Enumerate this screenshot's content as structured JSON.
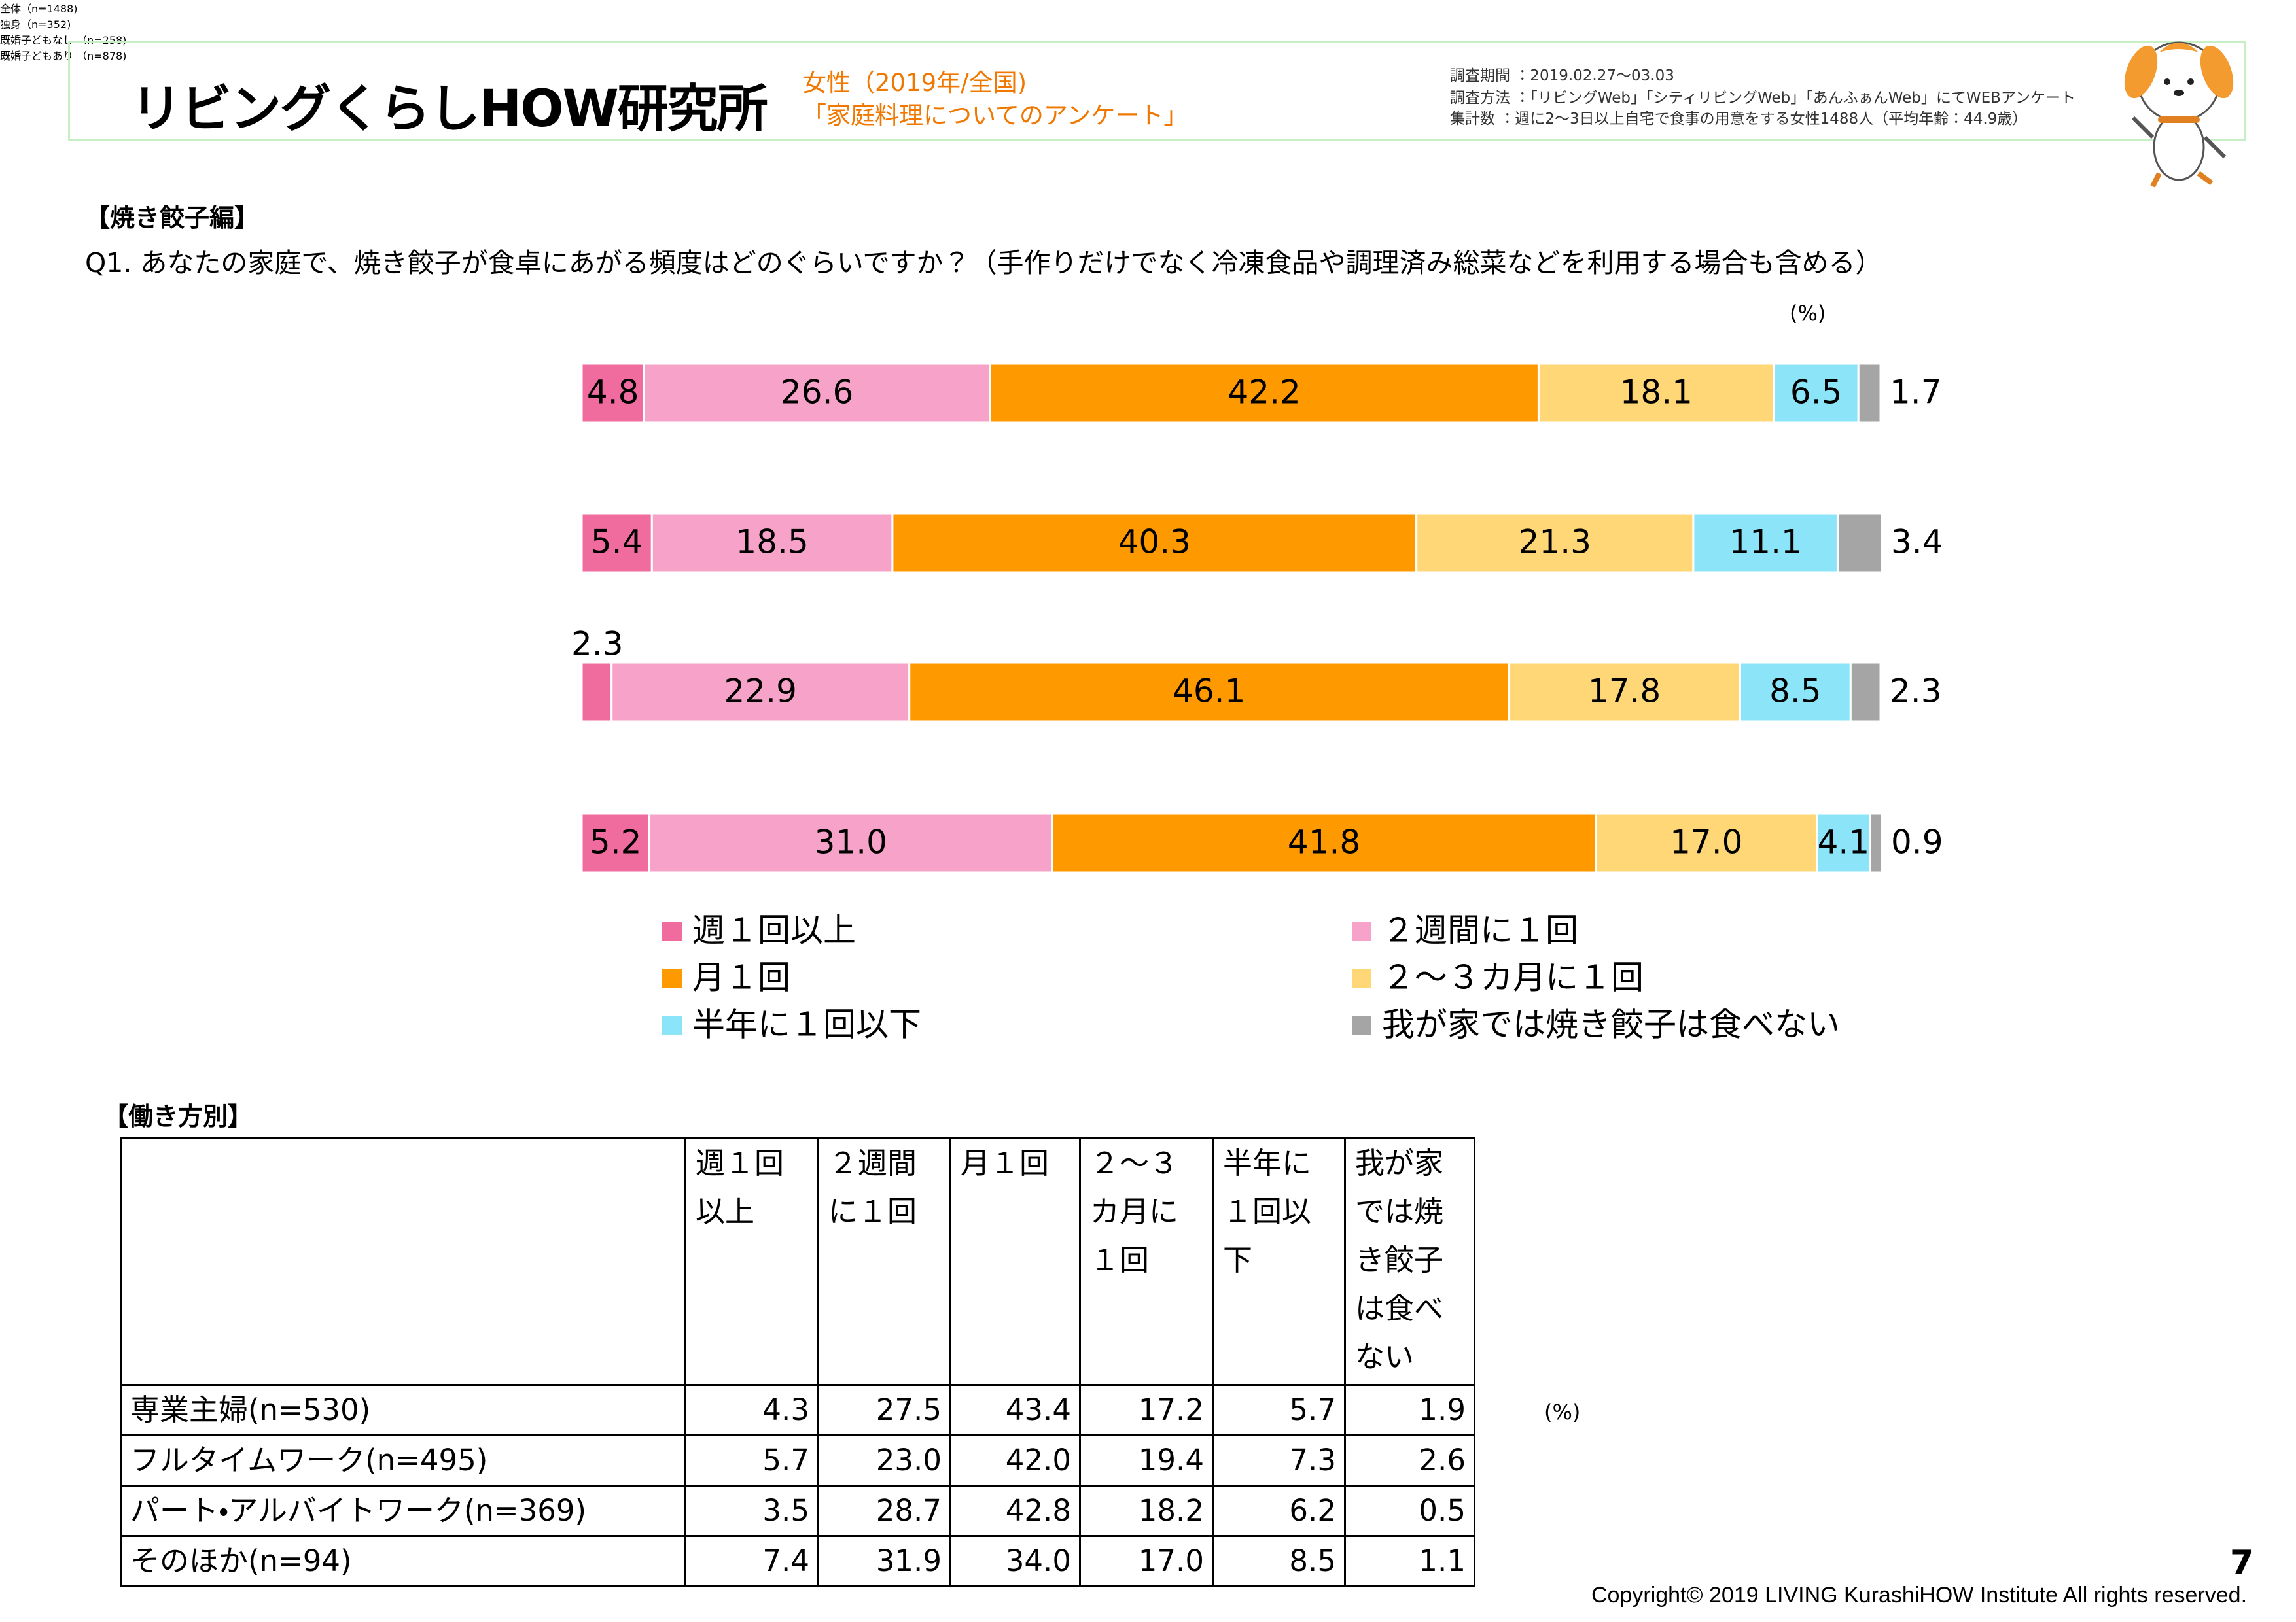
{
  "header": {
    "logo": "リビングくらしHOW研究所",
    "subject": "女性（2019年/全国)",
    "survey": "「家庭料理についてのアンケート」",
    "details": [
      "調査期間 ：2019.02.27～03.03",
      "調査方法 ：「リビングWeb」「シティリビングWeb」「あんふぁんWeb」にてWEBアンケート",
      "集計数 ：週に2～3日以上自宅で食事の用意をする女性1488人（平均年齢：44.9歳）"
    ]
  },
  "section": "【焼き餃子編】",
  "question": "Q1. あなたの家庭で、焼き餃子が食卓にあがる頻度はどのぐらいですか？（手作りだけでなく冷凍食品や調理済み総菜などを利用する場合も含める）",
  "chart_data": {
    "type": "bar",
    "stacked": true,
    "unit_label": "(%)",
    "xlim": [
      0,
      100
    ],
    "categories": [
      "全体（n=1488)",
      "独身（n=352)",
      "既婚子どもなし\n（n=258)",
      "既婚子どもあり\n（n=878)"
    ],
    "series": [
      {
        "name": "週１回以上",
        "color": "#f06c9f",
        "values": [
          4.8,
          5.4,
          2.3,
          5.2
        ]
      },
      {
        "name": "２週間に１回",
        "color": "#f7a3c9",
        "values": [
          26.6,
          18.5,
          22.9,
          31.0
        ],
        "value_labels": [
          "26.6",
          "18.5",
          "22.9",
          "31.0"
        ]
      },
      {
        "name": "月１回",
        "color": "#ff9900",
        "values": [
          42.2,
          40.3,
          46.1,
          41.8
        ]
      },
      {
        "name": "２～３カ月に１回",
        "color": "#ffd777",
        "values": [
          18.1,
          21.3,
          17.8,
          17.0
        ],
        "value_labels": [
          "18.1",
          "21.3",
          "17.8",
          "17.0"
        ]
      },
      {
        "name": "半年に１回以下",
        "color": "#8ce4f8",
        "values": [
          6.5,
          11.1,
          8.5,
          4.1
        ]
      },
      {
        "name": "我が家では焼き餃子は食べない",
        "color": "#a5a5a5",
        "values": [
          1.7,
          3.4,
          2.3,
          0.9
        ]
      }
    ]
  },
  "table": {
    "title": "【働き方別】",
    "unit_label": "(%)",
    "header": [
      "週１回以上",
      "２週間に１回",
      "月１回",
      "２～３カ月に１回",
      "半年に１回以下",
      "我が家では焼き餃子は食べない"
    ],
    "rows": [
      [
        "専業主婦(n=530)",
        "4.3",
        "27.5",
        "43.4",
        "17.2",
        "5.7",
        "1.9"
      ],
      [
        "フルタイムワーク(n=495)",
        "5.7",
        "23.0",
        "42.0",
        "19.4",
        "7.3",
        "2.6"
      ],
      [
        "パート・アルバイトワーク(n=369)",
        "3.5",
        "28.7",
        "42.8",
        "18.2",
        "6.2",
        "0.5"
      ],
      [
        "そのほか(n=94)",
        "7.4",
        "31.9",
        "34.0",
        "17.0",
        "8.5",
        "1.1"
      ]
    ]
  },
  "page_number": "7",
  "copyright": "Copyright© 2019 LIVING KurashiHOW Institute All rights reserved."
}
